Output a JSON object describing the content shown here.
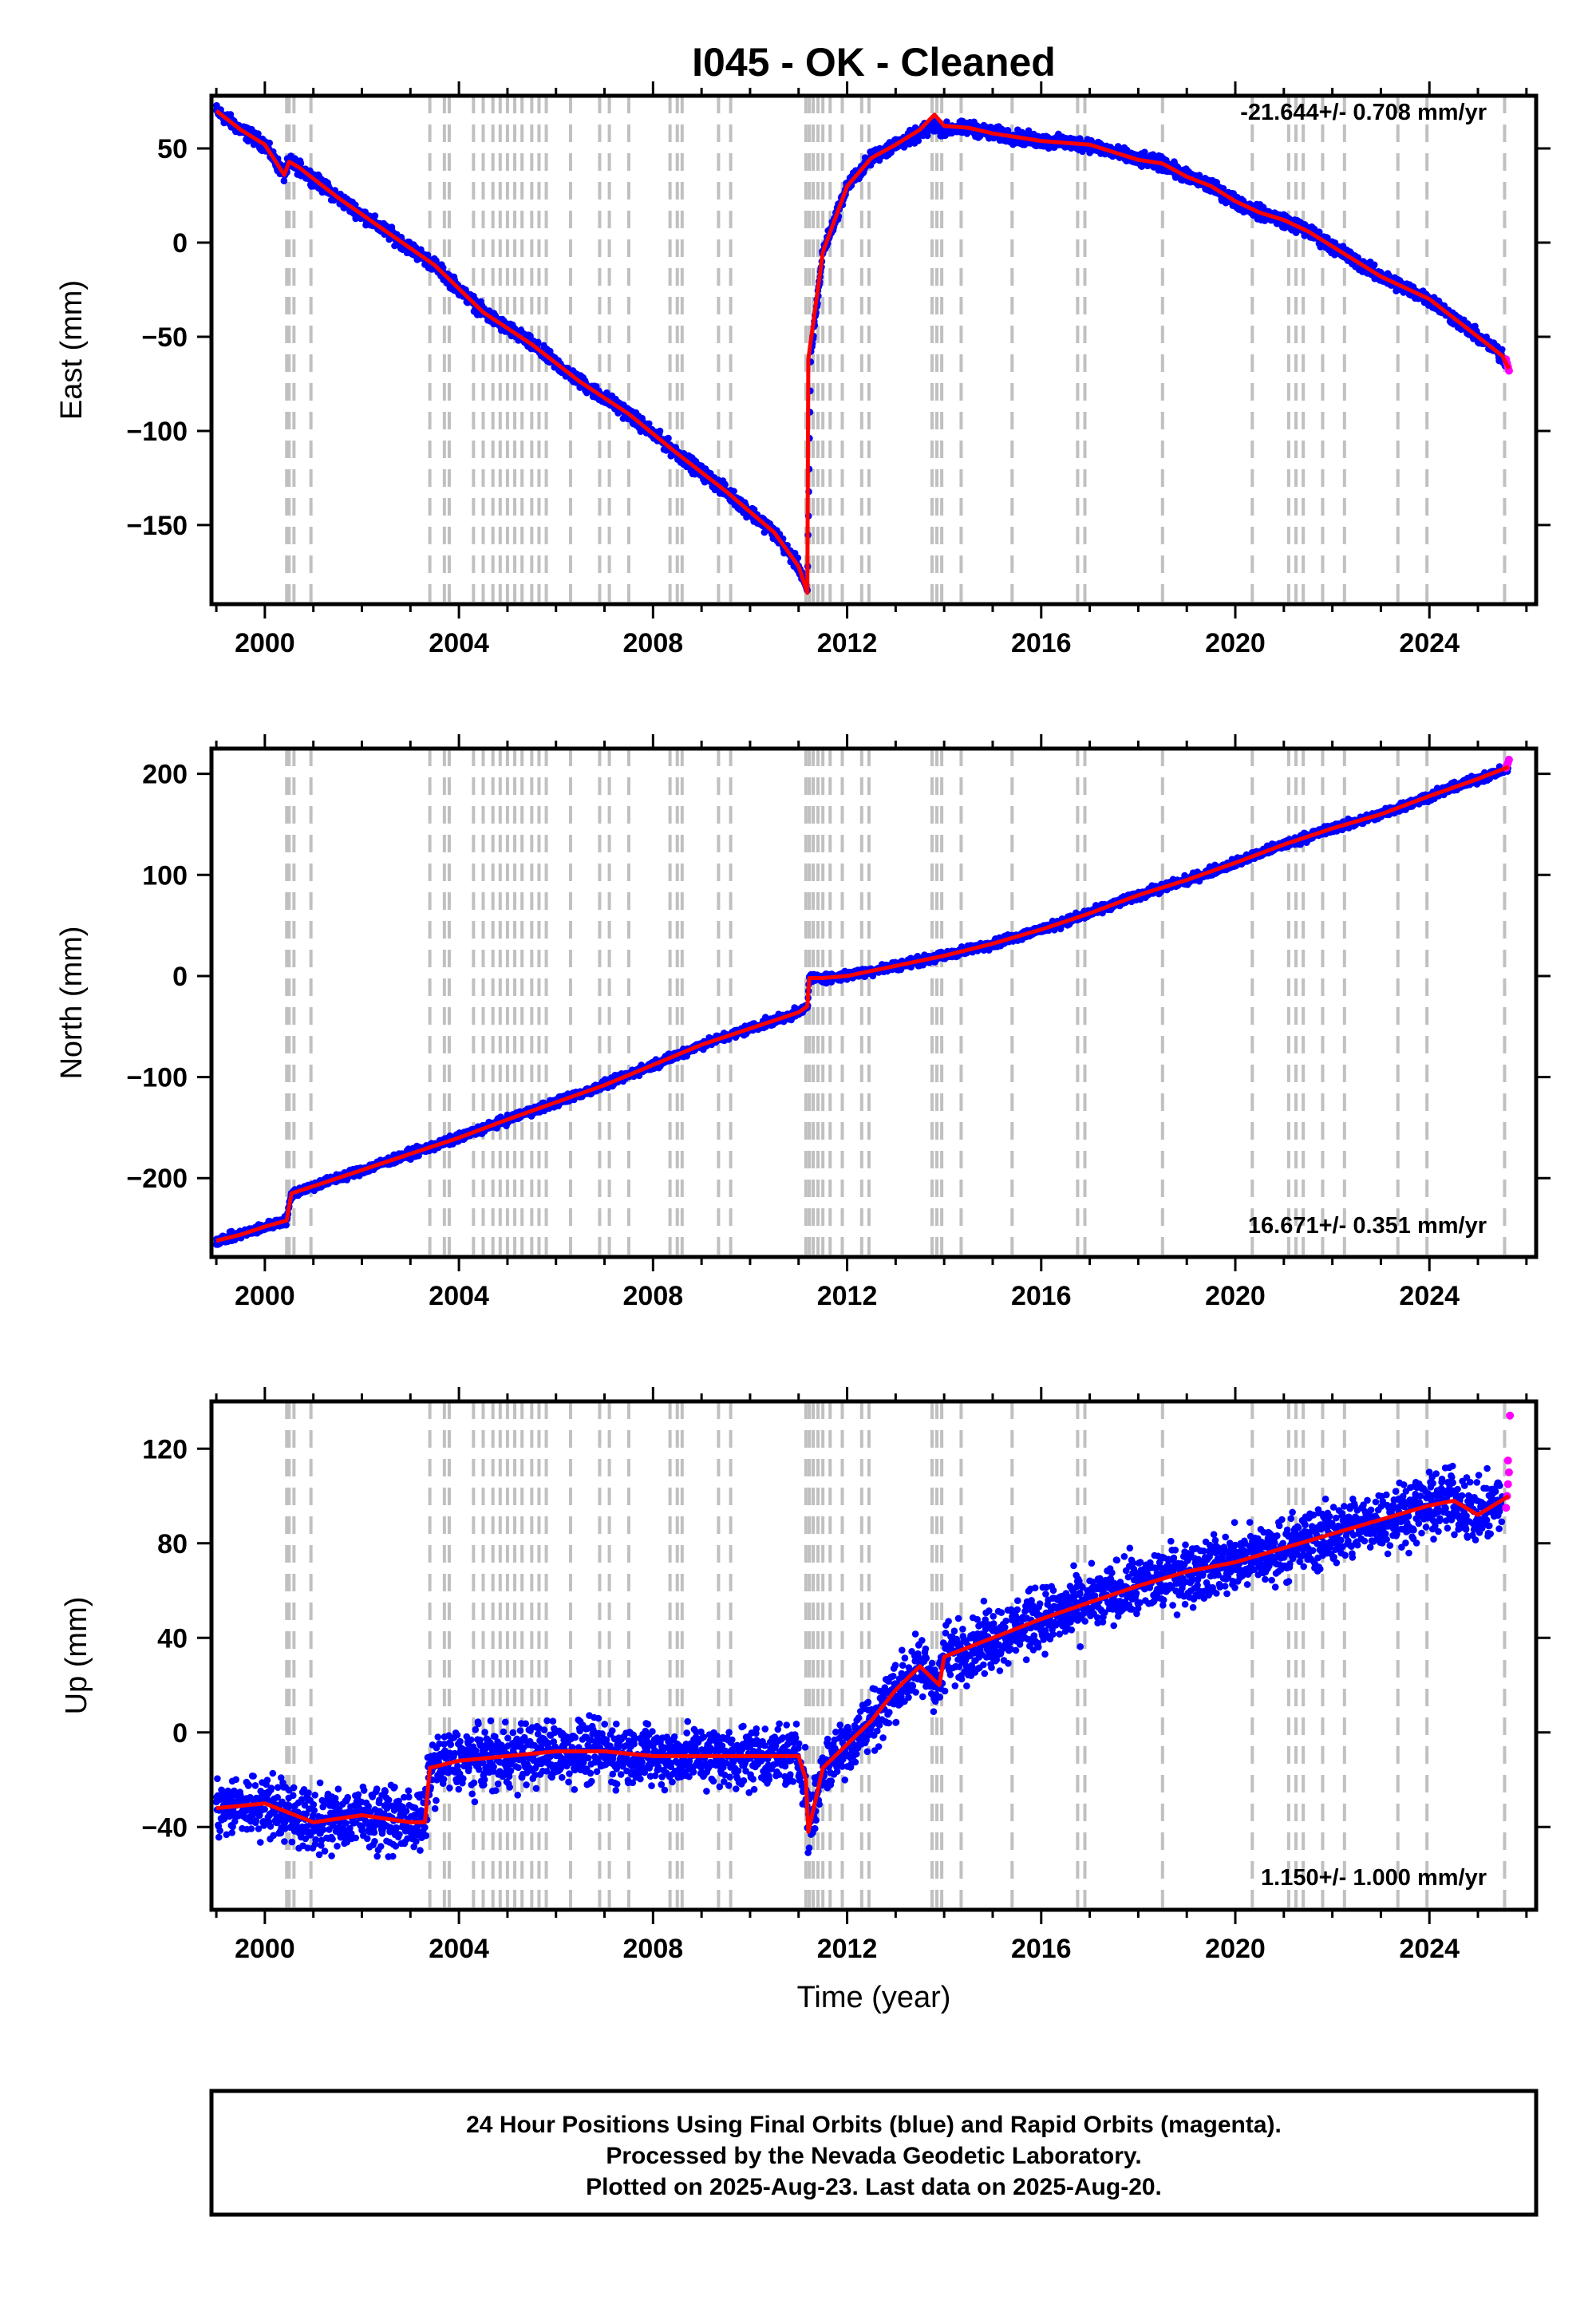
{
  "figure": {
    "title": "I045  - OK - Cleaned",
    "xlabel": "Time (year)",
    "notes": [
      "24 Hour Positions Using Final Orbits (blue) and Rapid Orbits (magenta).",
      "Processed by the Nevada Geodetic Laboratory.",
      "Plotted on 2025-Aug-23. Last data on 2025-Aug-20."
    ]
  },
  "colors": {
    "final": "#0000ff",
    "rapid": "#ff00ff",
    "model": "#ff0000",
    "steps": "#c0c0c0",
    "axis": "#000000"
  },
  "steps": [
    2000.45,
    2000.5,
    2000.6,
    2000.95,
    2003.4,
    2003.7,
    2003.8,
    2004.3,
    2004.5,
    2004.7,
    2004.85,
    2005.0,
    2005.15,
    2005.3,
    2005.5,
    2005.65,
    2005.8,
    2006.3,
    2006.9,
    2007.1,
    2007.5,
    2008.35,
    2008.5,
    2008.6,
    2009.35,
    2009.6,
    2011.15,
    2011.22,
    2011.3,
    2011.4,
    2011.5,
    2011.65,
    2011.9,
    2012.3,
    2012.45,
    2013.75,
    2013.85,
    2013.95,
    2014.35,
    2015.4,
    2016.75,
    2016.9,
    2018.5,
    2020.35,
    2021.1,
    2021.25,
    2021.4,
    2021.8,
    2022.25,
    2023.35,
    2023.95,
    2025.55
  ],
  "chart_data": [
    {
      "type": "scatter",
      "ylabel": "East (mm)",
      "rate_label": "-21.644+/- 0.708 mm/yr",
      "xlim": [
        1998.9,
        2026.2
      ],
      "ylim": [
        -192,
        78
      ],
      "xticks": [
        2000,
        2004,
        2008,
        2012,
        2016,
        2020,
        2024
      ],
      "yticks": [
        50,
        0,
        -50,
        -100,
        -150
      ],
      "jitter": 2.5,
      "series": [
        {
          "role": "final",
          "x": [
            1999.0,
            1999.5,
            2000.0,
            2000.4,
            2000.5,
            2000.7,
            2001.5,
            2002.5,
            2003.5,
            2004.5,
            2005.5,
            2006.5,
            2007.5,
            2008.5,
            2009.5,
            2010.5,
            2011.0,
            2011.12,
            2011.18,
            2011.25,
            2011.5,
            2012.0,
            2012.5,
            2013.0,
            2013.5,
            2013.8,
            2014.0,
            2014.5,
            2015.0,
            2015.5,
            2016.0,
            2016.5,
            2017.0,
            2017.5,
            2018.0,
            2018.5,
            2019.0,
            2019.5,
            2020.0,
            2020.5,
            2021.0,
            2021.5,
            2022.0,
            2022.5,
            2023.0,
            2023.5,
            2024.0,
            2024.5,
            2025.0,
            2025.5,
            2025.62
          ],
          "y": [
            70,
            60,
            52,
            36,
            43,
            40,
            24,
            6,
            -12,
            -37,
            -54,
            -74,
            -91,
            -112,
            -132,
            -154,
            -172,
            -180,
            -186,
            -60,
            -5,
            30,
            45,
            52,
            58,
            62,
            60,
            61,
            58,
            56,
            54,
            53,
            52,
            48,
            44,
            42,
            35,
            30,
            22,
            16,
            12,
            6,
            -2,
            -10,
            -18,
            -24,
            -30,
            -40,
            -50,
            -60,
            -66
          ]
        },
        {
          "role": "rapid",
          "x": [
            2025.58,
            2025.6,
            2025.62,
            2025.64
          ],
          "y": [
            -62,
            -64,
            -66,
            -68
          ]
        }
      ],
      "model": {
        "x": [
          1999.0,
          1999.5,
          2000.0,
          2000.4,
          2000.5,
          2000.7,
          2001.5,
          2002.5,
          2003.5,
          2004.5,
          2005.5,
          2006.5,
          2007.5,
          2008.5,
          2009.5,
          2010.5,
          2011.0,
          2011.18,
          2011.2,
          2011.5,
          2012.0,
          2012.5,
          2013.0,
          2013.5,
          2013.8,
          2014.0,
          2014.5,
          2015.0,
          2015.5,
          2016.0,
          2016.5,
          2017.0,
          2017.5,
          2018.0,
          2018.5,
          2019.0,
          2019.5,
          2020.0,
          2020.5,
          2021.0,
          2021.5,
          2022.0,
          2022.5,
          2023.0,
          2023.5,
          2024.0,
          2024.5,
          2025.0,
          2025.5,
          2025.64
        ],
        "y": [
          70,
          60,
          52,
          36,
          43,
          40,
          24,
          6,
          -12,
          -37,
          -54,
          -74,
          -91,
          -112,
          -132,
          -154,
          -172,
          -186,
          -62,
          -5,
          30,
          45,
          52,
          60,
          68,
          62,
          61,
          58,
          56,
          54,
          53,
          52,
          48,
          44,
          42,
          35,
          30,
          22,
          16,
          12,
          6,
          -2,
          -10,
          -18,
          -24,
          -30,
          -40,
          -50,
          -60,
          -67
        ]
      }
    },
    {
      "type": "scatter",
      "ylabel": "North (mm)",
      "rate_label": "16.671+/- 0.351 mm/yr",
      "xlim": [
        1998.9,
        2026.2
      ],
      "ylim": [
        -278,
        225
      ],
      "xticks": [
        2000,
        2004,
        2008,
        2012,
        2016,
        2020,
        2024
      ],
      "yticks": [
        200,
        100,
        0,
        -100,
        -200
      ],
      "jitter": 3,
      "series": [
        {
          "role": "final",
          "x": [
            1999.0,
            1999.5,
            2000.0,
            2000.45,
            2000.55,
            2001.0,
            2002.0,
            2003.0,
            2004.0,
            2005.0,
            2006.0,
            2007.0,
            2008.0,
            2009.0,
            2010.0,
            2011.0,
            2011.18,
            2011.22,
            2011.5,
            2012.0,
            2012.5,
            2013.0,
            2013.5,
            2014.0,
            2015.0,
            2016.0,
            2017.0,
            2018.0,
            2019.0,
            2020.0,
            2021.0,
            2022.0,
            2023.0,
            2024.0,
            2025.0,
            2025.62
          ],
          "y": [
            -262,
            -256,
            -248,
            -242,
            -215,
            -208,
            -192,
            -176,
            -160,
            -142,
            -125,
            -108,
            -88,
            -68,
            -52,
            -36,
            -30,
            -2,
            -2,
            0,
            5,
            10,
            15,
            20,
            32,
            46,
            62,
            80,
            95,
            112,
            130,
            146,
            160,
            178,
            195,
            205
          ]
        },
        {
          "role": "rapid",
          "x": [
            2025.58,
            2025.6,
            2025.62,
            2025.64
          ],
          "y": [
            206,
            209,
            211,
            214
          ]
        }
      ],
      "model": {
        "x": [
          1999.0,
          1999.5,
          2000.0,
          2000.45,
          2000.55,
          2001.0,
          2002.0,
          2003.0,
          2004.0,
          2005.0,
          2006.0,
          2007.0,
          2008.0,
          2009.0,
          2010.0,
          2011.0,
          2011.18,
          2011.22,
          2011.5,
          2012.0,
          2012.5,
          2013.0,
          2013.5,
          2014.0,
          2015.0,
          2016.0,
          2017.0,
          2018.0,
          2019.0,
          2020.0,
          2021.0,
          2022.0,
          2023.0,
          2024.0,
          2025.0,
          2025.64
        ],
        "y": [
          -262,
          -256,
          -248,
          -242,
          -215,
          -208,
          -192,
          -176,
          -160,
          -142,
          -125,
          -108,
          -88,
          -68,
          -52,
          -36,
          -30,
          -2,
          -2,
          0,
          5,
          10,
          15,
          20,
          32,
          46,
          62,
          80,
          95,
          112,
          130,
          146,
          160,
          178,
          195,
          207
        ]
      }
    },
    {
      "type": "scatter",
      "ylabel": "Up (mm)",
      "rate_label": "1.150+/- 1.000 mm/yr",
      "xlim": [
        1998.9,
        2026.2
      ],
      "ylim": [
        -75,
        140
      ],
      "xticks": [
        2000,
        2004,
        2008,
        2012,
        2016,
        2020,
        2024
      ],
      "yticks": [
        120,
        80,
        40,
        0,
        -40
      ],
      "jitter": 9,
      "series": [
        {
          "role": "final",
          "x": [
            1999.0,
            2000.0,
            2001.0,
            2002.0,
            2003.0,
            2003.3,
            2003.4,
            2004.0,
            2005.0,
            2006.0,
            2007.0,
            2008.0,
            2009.0,
            2010.0,
            2011.0,
            2011.15,
            2011.2,
            2011.5,
            2012.0,
            2012.5,
            2013.0,
            2013.5,
            2013.9,
            2014.0,
            2014.5,
            2015.0,
            2016.0,
            2017.0,
            2018.0,
            2019.0,
            2020.0,
            2021.0,
            2022.0,
            2023.0,
            2024.0,
            2024.5,
            2025.0,
            2025.5
          ],
          "y": [
            -32,
            -30,
            -38,
            -35,
            -38,
            -38,
            -15,
            -12,
            -10,
            -8,
            -8,
            -10,
            -10,
            -10,
            -10,
            -20,
            -42,
            -15,
            -5,
            5,
            18,
            28,
            20,
            32,
            36,
            40,
            48,
            55,
            62,
            68,
            72,
            78,
            84,
            90,
            96,
            98,
            92,
            98
          ]
        },
        {
          "role": "rapid",
          "x": [
            2025.58,
            2025.6,
            2025.62,
            2025.62,
            2025.64,
            2025.66
          ],
          "y": [
            95,
            100,
            105,
            115,
            110,
            134
          ]
        }
      ],
      "model": {
        "x": [
          1999.0,
          2000.0,
          2001.0,
          2002.0,
          2003.0,
          2003.3,
          2003.4,
          2004.0,
          2005.0,
          2006.0,
          2007.0,
          2008.0,
          2009.0,
          2010.0,
          2011.0,
          2011.15,
          2011.2,
          2011.5,
          2012.0,
          2012.5,
          2013.0,
          2013.5,
          2013.9,
          2014.0,
          2014.5,
          2015.0,
          2016.0,
          2017.0,
          2018.0,
          2019.0,
          2020.0,
          2021.0,
          2022.0,
          2023.0,
          2024.0,
          2024.5,
          2025.0,
          2025.64
        ],
        "y": [
          -32,
          -30,
          -38,
          -35,
          -38,
          -38,
          -15,
          -12,
          -10,
          -8,
          -8,
          -10,
          -10,
          -10,
          -10,
          -20,
          -42,
          -15,
          -5,
          5,
          18,
          28,
          20,
          32,
          36,
          40,
          48,
          55,
          62,
          68,
          72,
          78,
          84,
          90,
          96,
          98,
          92,
          100
        ]
      }
    }
  ]
}
